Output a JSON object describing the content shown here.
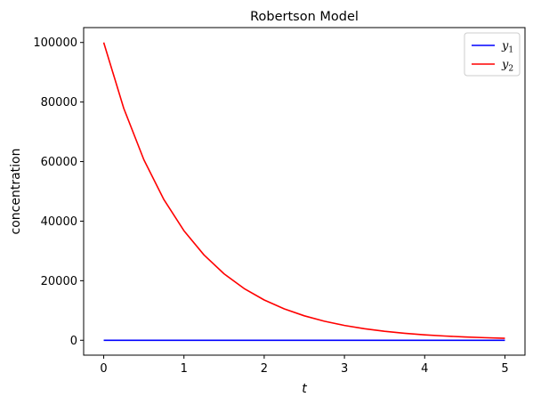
{
  "chart_data": {
    "type": "line",
    "title": "Robertson Model",
    "xlabel": "t",
    "ylabel": "concentration",
    "xlim": [
      -0.25,
      5.25
    ],
    "ylim": [
      -5000,
      105000
    ],
    "xticks": [
      0,
      1,
      2,
      3,
      4,
      5
    ],
    "xtick_labels": [
      "0",
      "1",
      "2",
      "3",
      "4",
      "5"
    ],
    "yticks": [
      0,
      20000,
      40000,
      60000,
      80000,
      100000
    ],
    "ytick_labels": [
      "0",
      "20000",
      "40000",
      "60000",
      "80000",
      "100000"
    ],
    "grid": false,
    "legend_position": "top-right",
    "series": [
      {
        "name": "y",
        "subscript": "1",
        "color": "#0000ff",
        "x": [
          0,
          0.5,
          1,
          1.5,
          2,
          2.5,
          3,
          3.5,
          4,
          4.5,
          5
        ],
        "values": [
          0,
          0,
          0,
          0,
          0,
          0,
          0,
          0,
          0,
          0,
          0
        ]
      },
      {
        "name": "y",
        "subscript": "2",
        "color": "#ff0000",
        "x": [
          0,
          0.25,
          0.5,
          0.75,
          1,
          1.25,
          1.5,
          1.75,
          2,
          2.25,
          2.5,
          2.75,
          3,
          3.25,
          3.5,
          3.75,
          4,
          4.25,
          4.5,
          4.75,
          5
        ],
        "values": [
          100000,
          77880,
          60653,
          47237,
          36788,
          28650,
          22313,
          17377,
          13534,
          10540,
          8208,
          6393,
          4979,
          3877,
          3020,
          2352,
          1832,
          1426,
          1111,
          865,
          674
        ]
      }
    ]
  }
}
